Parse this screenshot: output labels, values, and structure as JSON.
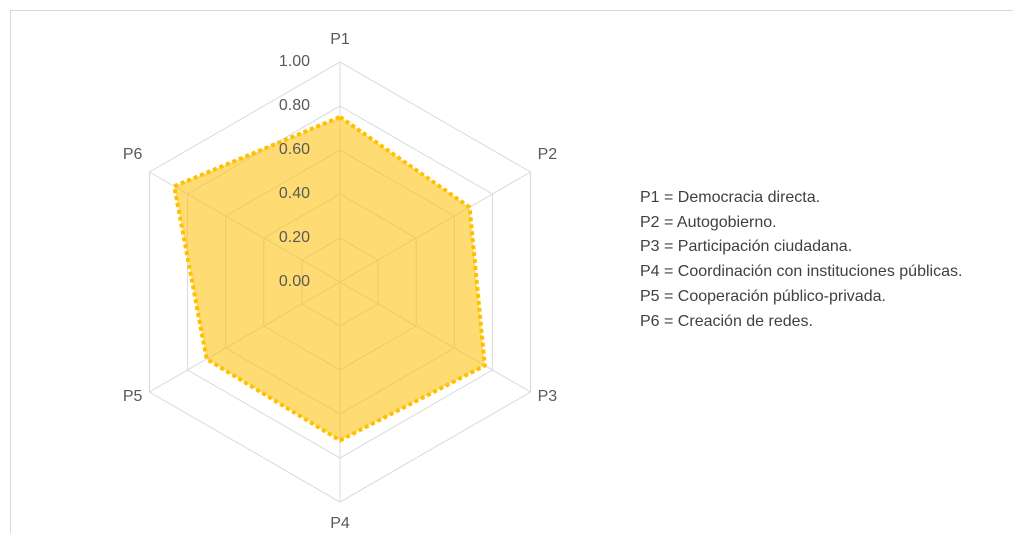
{
  "chart_data": {
    "type": "radar",
    "categories": [
      "P1",
      "P2",
      "P3",
      "P4",
      "P5",
      "P6"
    ],
    "series": [
      {
        "color": "#ffc000",
        "values": [
          0.75,
          0.68,
          0.76,
          0.72,
          0.7,
          0.87
        ]
      }
    ],
    "rlim": [
      0,
      1
    ],
    "rticks": [
      {
        "value": 0,
        "label": "0.00"
      },
      {
        "value": 0.2,
        "label": "0.20"
      },
      {
        "value": 0.4,
        "label": "0.40"
      },
      {
        "value": 0.6,
        "label": "0.60"
      },
      {
        "value": 0.8,
        "label": "0.80"
      },
      {
        "value": 1,
        "label": "1.00"
      }
    ],
    "grid": true,
    "notes": [
      "P1 = Democracia directa.",
      "P2 = Autogobierno.",
      "P3 = Participación ciudadana.",
      "P4 = Coordinación con instituciones públicas.",
      "P5 = Cooperación público-privada.",
      "P6 = Creación de redes."
    ]
  }
}
